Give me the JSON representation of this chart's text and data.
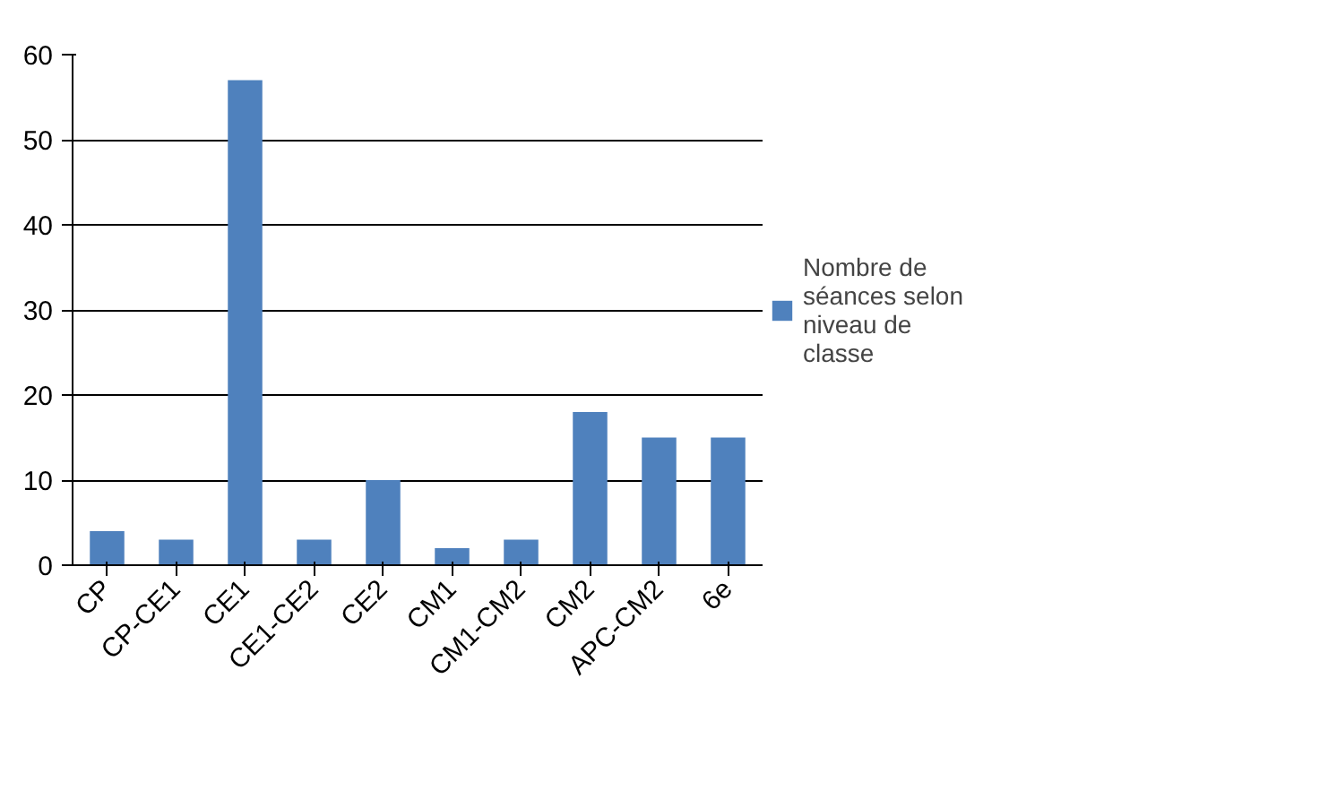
{
  "chart_data": {
    "type": "bar",
    "categories": [
      "CP",
      "CP-CE1",
      "CE1",
      "CE1-CE2",
      "CE2",
      "CM1",
      "CM1-CM2",
      "CM2",
      "APC-CM2",
      "6e"
    ],
    "series": [
      {
        "name": "Nombre de séances selon niveau de classe",
        "color": "#4f81bd",
        "values": [
          4,
          3,
          57,
          3,
          10,
          2,
          3,
          18,
          15,
          15
        ]
      }
    ],
    "ylim": [
      0,
      60
    ],
    "yticks": [
      0,
      10,
      20,
      30,
      40,
      50,
      60
    ],
    "grid": "y",
    "legend": "right"
  }
}
